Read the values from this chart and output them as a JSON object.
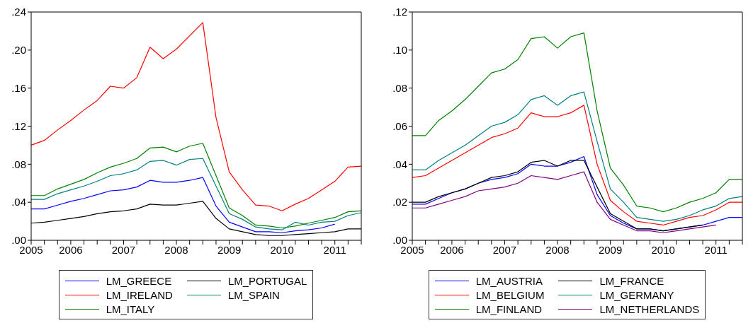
{
  "chart_data": [
    {
      "type": "line",
      "categories": [
        "2005",
        null,
        null,
        "2006",
        null,
        null,
        null,
        "2007",
        null,
        null,
        null,
        "2008",
        null,
        null,
        null,
        "2009",
        null,
        null,
        null,
        "2010",
        null,
        null,
        null,
        "2011",
        null,
        null
      ],
      "ylim": [
        0,
        0.24
      ],
      "yticks": [
        {
          "value": 0,
          "label": ".00"
        },
        {
          "value": 0.04,
          "label": ".04"
        },
        {
          "value": 0.08,
          "label": ".08"
        },
        {
          "value": 0.12,
          "label": ".12"
        },
        {
          "value": 0.16,
          "label": ".16"
        },
        {
          "value": 0.2,
          "label": ".20"
        },
        {
          "value": 0.24,
          "label": ".24"
        }
      ],
      "legend": "bottom",
      "series": [
        {
          "name": "LM_GREECE",
          "color": "#0000ff",
          "values": [
            0.033,
            0.033,
            0.037,
            0.041,
            0.044,
            0.048,
            0.052,
            0.053,
            0.056,
            0.063,
            0.061,
            0.061,
            0.063,
            0.066,
            0.036,
            0.019,
            0.014,
            0.009,
            0.009,
            0.008,
            0.01,
            0.011,
            0.013,
            0.017,
            null,
            null
          ]
        },
        {
          "name": "LM_IRELAND",
          "color": "#ff0000",
          "values": [
            0.1,
            0.105,
            0.116,
            0.126,
            0.137,
            0.147,
            0.162,
            0.16,
            0.171,
            0.203,
            0.191,
            0.201,
            0.215,
            0.229,
            0.129,
            0.072,
            0.053,
            0.037,
            0.036,
            0.031,
            0.038,
            0.044,
            0.053,
            0.062,
            0.077,
            0.078
          ]
        },
        {
          "name": "LM_ITALY",
          "color": "#008000",
          "values": [
            0.047,
            0.047,
            0.054,
            0.059,
            0.064,
            0.071,
            0.077,
            0.081,
            0.086,
            0.097,
            0.098,
            0.093,
            0.099,
            0.102,
            0.068,
            0.034,
            0.026,
            0.016,
            0.015,
            0.013,
            0.015,
            0.018,
            0.021,
            0.024,
            0.03,
            0.031
          ]
        },
        {
          "name": "LM_PORTUGAL",
          "color": "#000000",
          "values": [
            0.018,
            0.019,
            0.021,
            0.023,
            0.025,
            0.028,
            0.03,
            0.031,
            0.033,
            0.038,
            0.037,
            0.037,
            0.039,
            0.041,
            0.023,
            0.012,
            0.009,
            0.006,
            0.005,
            0.005,
            0.006,
            0.007,
            0.008,
            0.009,
            0.012,
            0.012
          ]
        },
        {
          "name": "LM_SPAIN",
          "color": "#008080",
          "values": [
            0.043,
            0.043,
            0.049,
            0.053,
            0.057,
            0.062,
            0.068,
            0.07,
            0.074,
            0.083,
            0.084,
            0.079,
            0.085,
            0.086,
            0.057,
            0.028,
            0.022,
            0.014,
            0.012,
            0.011,
            0.019,
            0.016,
            0.019,
            0.02,
            0.026,
            0.029
          ]
        }
      ]
    },
    {
      "type": "line",
      "categories": [
        "2005",
        null,
        null,
        "2006",
        null,
        null,
        null,
        "2007",
        null,
        null,
        null,
        "2008",
        null,
        null,
        null,
        "2009",
        null,
        null,
        null,
        "2010",
        null,
        null,
        null,
        "2011",
        null,
        null
      ],
      "ylim": [
        0,
        0.12
      ],
      "yticks": [
        {
          "value": 0,
          "label": ".00"
        },
        {
          "value": 0.02,
          "label": ".02"
        },
        {
          "value": 0.04,
          "label": ".04"
        },
        {
          "value": 0.06,
          "label": ".06"
        },
        {
          "value": 0.08,
          "label": ".08"
        },
        {
          "value": 0.1,
          "label": ".10"
        },
        {
          "value": 0.12,
          "label": ".12"
        }
      ],
      "legend": "bottom",
      "series": [
        {
          "name": "LM_AUSTRIA",
          "color": "#0000ff",
          "values": [
            0.019,
            0.019,
            0.022,
            0.025,
            0.027,
            0.03,
            0.032,
            0.033,
            0.035,
            0.04,
            0.039,
            0.039,
            0.041,
            0.044,
            0.024,
            0.013,
            0.009,
            0.006,
            0.006,
            0.005,
            0.006,
            0.007,
            0.008,
            0.01,
            0.012,
            0.012
          ]
        },
        {
          "name": "LM_BELGIUM",
          "color": "#ff0000",
          "values": [
            0.033,
            0.034,
            0.038,
            0.042,
            0.046,
            0.05,
            0.054,
            0.056,
            0.059,
            0.067,
            0.065,
            0.065,
            0.067,
            0.071,
            0.04,
            0.021,
            0.015,
            0.01,
            0.009,
            0.008,
            0.01,
            0.012,
            0.013,
            0.016,
            0.02,
            0.02
          ]
        },
        {
          "name": "LM_FINLAND",
          "color": "#008000",
          "values": [
            0.055,
            0.055,
            0.063,
            0.068,
            0.074,
            0.081,
            0.088,
            0.09,
            0.095,
            0.106,
            0.107,
            0.101,
            0.107,
            0.109,
            0.068,
            0.038,
            0.029,
            0.018,
            0.017,
            0.015,
            0.017,
            0.02,
            0.022,
            0.025,
            0.032,
            0.032
          ]
        },
        {
          "name": "LM_FRANCE",
          "color": "#000000",
          "values": [
            0.02,
            0.02,
            0.023,
            0.025,
            0.027,
            0.03,
            0.033,
            0.034,
            0.036,
            0.041,
            0.042,
            0.039,
            0.042,
            0.042,
            0.028,
            0.014,
            0.01,
            0.006,
            0.006,
            0.005,
            0.006,
            0.007,
            0.008,
            null,
            null,
            null
          ]
        },
        {
          "name": "LM_GERMANY",
          "color": "#008080",
          "values": [
            0.037,
            0.037,
            0.042,
            0.046,
            0.05,
            0.055,
            0.06,
            0.062,
            0.066,
            0.074,
            0.076,
            0.071,
            0.076,
            0.078,
            0.052,
            0.027,
            0.02,
            0.012,
            0.011,
            0.01,
            0.011,
            0.013,
            0.016,
            0.018,
            0.022,
            0.023
          ]
        },
        {
          "name": "LM_NETHERLANDS",
          "color": "#800080",
          "values": [
            0.017,
            0.017,
            0.019,
            0.021,
            0.023,
            0.026,
            0.027,
            0.028,
            0.03,
            0.034,
            0.033,
            0.032,
            0.034,
            0.036,
            0.02,
            0.011,
            0.008,
            0.005,
            0.005,
            0.004,
            0.005,
            0.006,
            0.007,
            0.008,
            null,
            null
          ]
        }
      ]
    }
  ]
}
